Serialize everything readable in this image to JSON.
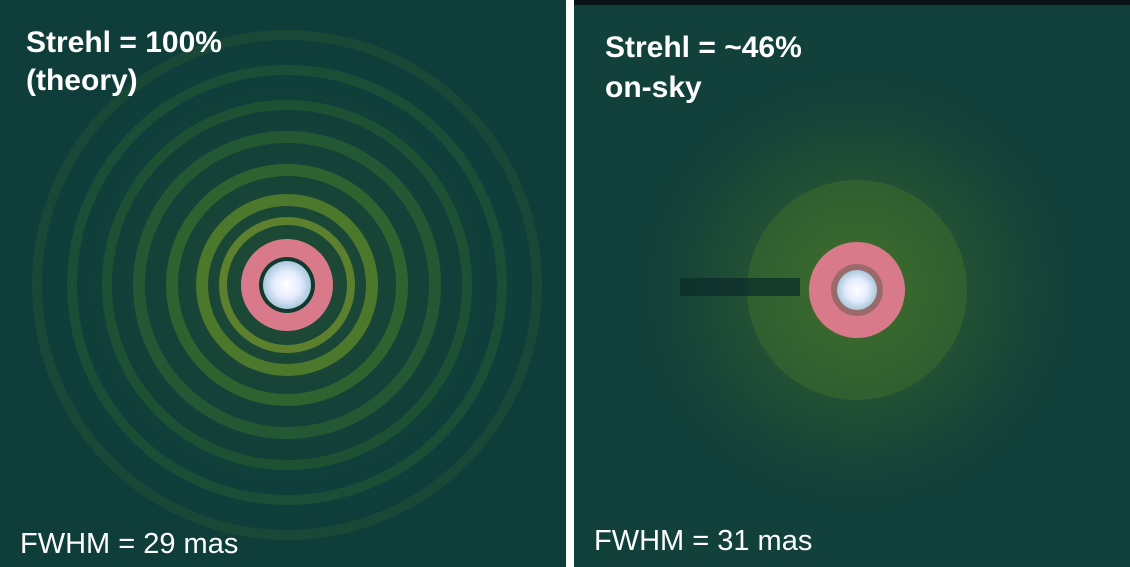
{
  "panels": [
    {
      "title_lines": [
        "Strehl = 100%",
        "(theory)"
      ],
      "caption": "FWHM = 29 mas"
    },
    {
      "title_lines": [
        "Strehl = ~46%",
        "on-sky"
      ],
      "caption": "FWHM = 31 mas"
    }
  ]
}
